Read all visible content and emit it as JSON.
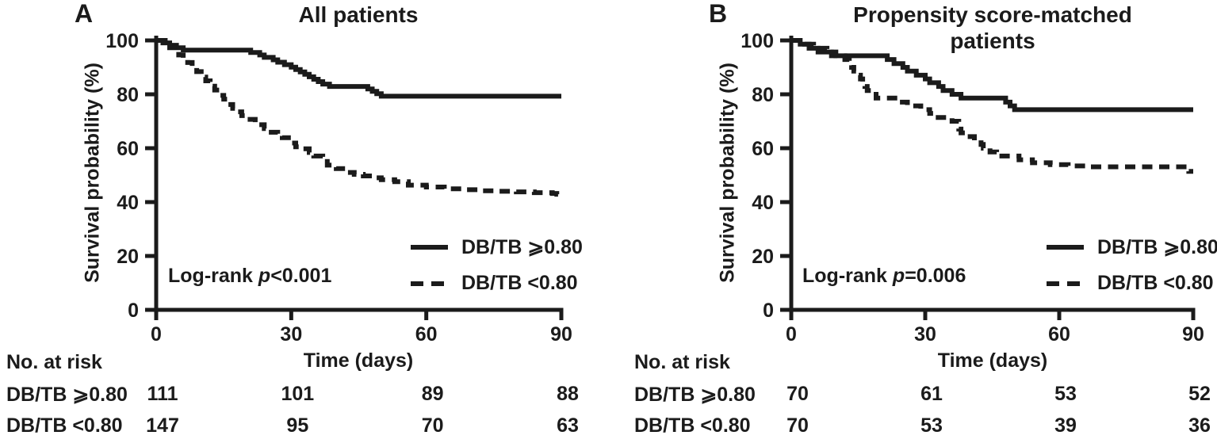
{
  "figure": {
    "panels": [
      {
        "letter": "A",
        "log_rank": {
          "prefix": "Log-rank ",
          "p": "p",
          "value": "<0.001"
        }
      },
      {
        "letter": "B",
        "log_rank": {
          "prefix": "Log-rank ",
          "p": "p",
          "value": "=0.006"
        }
      }
    ]
  },
  "chart_data": [
    {
      "type": "line",
      "subtype": "kaplan-meier-step",
      "title": "All patients",
      "xlabel": "Time (days)",
      "ylabel": "Survival probability (%)",
      "xlim": [
        0,
        90
      ],
      "ylim": [
        0,
        100
      ],
      "x_ticks": [
        0,
        30,
        60,
        90
      ],
      "y_ticks": [
        0,
        20,
        40,
        60,
        80,
        100
      ],
      "grid": false,
      "legend_position": "lower right",
      "annotation": "Log-rank p<0.001",
      "series": [
        {
          "name": "DB/TB ⩾0.80",
          "line_style": "solid",
          "points": [
            [
              0,
              100
            ],
            [
              1.5,
              99.1
            ],
            [
              3,
              98.2
            ],
            [
              4.5,
              97.3
            ],
            [
              6,
              96.4
            ],
            [
              19,
              96.4
            ],
            [
              21,
              95.5
            ],
            [
              23,
              94.6
            ],
            [
              24,
              93.7
            ],
            [
              26,
              92.8
            ],
            [
              27,
              91.9
            ],
            [
              28.5,
              91
            ],
            [
              30,
              90.1
            ],
            [
              31,
              89.2
            ],
            [
              32,
              88.3
            ],
            [
              33,
              87.4
            ],
            [
              34,
              86.5
            ],
            [
              35,
              85.6
            ],
            [
              36,
              84.7
            ],
            [
              37,
              83.8
            ],
            [
              38.5,
              82.9
            ],
            [
              46,
              82.9
            ],
            [
              47,
              82
            ],
            [
              48,
              81.1
            ],
            [
              49,
              80.2
            ],
            [
              50,
              79.3
            ],
            [
              90,
              79.3
            ]
          ]
        },
        {
          "name": "DB/TB <0.80",
          "line_style": "dashed",
          "points": [
            [
              0,
              100
            ],
            [
              2,
              98.6
            ],
            [
              3,
              97.3
            ],
            [
              4,
              95.9
            ],
            [
              5,
              94.6
            ],
            [
              6,
              93.2
            ],
            [
              7,
              91.8
            ],
            [
              8,
              89.8
            ],
            [
              9,
              88.4
            ],
            [
              10,
              86.4
            ],
            [
              11,
              85
            ],
            [
              12,
              83
            ],
            [
              13,
              81.6
            ],
            [
              14,
              79.6
            ],
            [
              15,
              78.2
            ],
            [
              16,
              76.2
            ],
            [
              17,
              74.8
            ],
            [
              18,
              73.5
            ],
            [
              19,
              72.1
            ],
            [
              20,
              70.7
            ],
            [
              22,
              68.7
            ],
            [
              24,
              67.3
            ],
            [
              25,
              65.9
            ],
            [
              27,
              65.2
            ],
            [
              28,
              63.9
            ],
            [
              30,
              61.9
            ],
            [
              31,
              60.5
            ],
            [
              32,
              59.8
            ],
            [
              34,
              58.4
            ],
            [
              35,
              57.1
            ],
            [
              37,
              55.1
            ],
            [
              38,
              53.7
            ],
            [
              40,
              52.4
            ],
            [
              42,
              51
            ],
            [
              44,
              50.3
            ],
            [
              46,
              49.7
            ],
            [
              48,
              49
            ],
            [
              50,
              48.3
            ],
            [
              53,
              47.6
            ],
            [
              56,
              46.3
            ],
            [
              60,
              45.6
            ],
            [
              64,
              44.9
            ],
            [
              68,
              44.6
            ],
            [
              72,
              44.2
            ],
            [
              76,
              44
            ],
            [
              80,
              43.8
            ],
            [
              84,
              43.5
            ],
            [
              88,
              43.2
            ],
            [
              89,
              42.9
            ],
            [
              90,
              42.9
            ]
          ]
        }
      ],
      "risk_table": {
        "header": "No. at risk",
        "time_points": [
          0,
          30,
          60,
          90
        ],
        "rows": [
          {
            "label": "DB/TB ⩾0.80",
            "values": [
              111,
              101,
              89,
              88
            ]
          },
          {
            "label": "DB/TB <0.80",
            "values": [
              147,
              95,
              70,
              63
            ]
          }
        ]
      }
    },
    {
      "type": "line",
      "subtype": "kaplan-meier-step",
      "title": "Propensity score-matched patients",
      "xlabel": "Time (days)",
      "ylabel": "Survival probability (%)",
      "xlim": [
        0,
        90
      ],
      "ylim": [
        0,
        100
      ],
      "x_ticks": [
        0,
        30,
        60,
        90
      ],
      "y_ticks": [
        0,
        20,
        40,
        60,
        80,
        100
      ],
      "grid": false,
      "legend_position": "lower right",
      "annotation": "Log-rank p=0.006",
      "series": [
        {
          "name": "DB/TB ⩾0.80",
          "line_style": "solid",
          "points": [
            [
              0,
              100
            ],
            [
              2,
              98.6
            ],
            [
              4,
              97.1
            ],
            [
              6,
              95.7
            ],
            [
              9,
              94.3
            ],
            [
              20,
              94.3
            ],
            [
              21.5,
              92.9
            ],
            [
              23,
              91.4
            ],
            [
              25,
              90
            ],
            [
              26,
              88.6
            ],
            [
              28,
              87.1
            ],
            [
              30,
              85.7
            ],
            [
              31,
              84.3
            ],
            [
              33,
              82.9
            ],
            [
              34,
              81.4
            ],
            [
              36,
              80
            ],
            [
              38,
              78.6
            ],
            [
              47,
              78.6
            ],
            [
              48,
              77.1
            ],
            [
              49,
              75.7
            ],
            [
              50,
              74.3
            ],
            [
              90,
              74.3
            ]
          ]
        },
        {
          "name": "DB/TB <0.80",
          "line_style": "dashed",
          "points": [
            [
              0,
              100
            ],
            [
              3,
              98.6
            ],
            [
              5,
              97.1
            ],
            [
              8,
              95.7
            ],
            [
              10,
              94.3
            ],
            [
              12,
              92.9
            ],
            [
              13,
              91.4
            ],
            [
              13.5,
              90
            ],
            [
              14,
              88.6
            ],
            [
              15,
              87.1
            ],
            [
              15.5,
              85.7
            ],
            [
              16,
              84.3
            ],
            [
              16.5,
              82.9
            ],
            [
              17,
              81.4
            ],
            [
              18,
              80
            ],
            [
              19,
              78.6
            ],
            [
              23,
              78.6
            ],
            [
              24,
              77.1
            ],
            [
              26,
              75.7
            ],
            [
              29,
              74.3
            ],
            [
              31,
              72.9
            ],
            [
              32,
              71.4
            ],
            [
              36,
              70
            ],
            [
              37.5,
              67.1
            ],
            [
              38,
              65.7
            ],
            [
              39,
              64.3
            ],
            [
              41,
              62.9
            ],
            [
              42.5,
              61.4
            ],
            [
              43,
              60
            ],
            [
              44.5,
              58.6
            ],
            [
              46,
              57.1
            ],
            [
              50,
              57.1
            ],
            [
              51,
              55.7
            ],
            [
              54,
              54.6
            ],
            [
              58,
              53.9
            ],
            [
              62,
              53.4
            ],
            [
              66,
              53.1
            ],
            [
              88,
              53.1
            ],
            [
              89,
              51.4
            ],
            [
              90,
              51.4
            ]
          ]
        }
      ],
      "risk_table": {
        "header": "No. at risk",
        "time_points": [
          0,
          30,
          60,
          90
        ],
        "rows": [
          {
            "label": "DB/TB ⩾0.80",
            "values": [
              70,
              61,
              53,
              52
            ]
          },
          {
            "label": "DB/TB <0.80",
            "values": [
              70,
              53,
              39,
              36
            ]
          }
        ]
      }
    }
  ],
  "style": {
    "curve_color": "#1b1b1b",
    "text_color": "#1b1b1b",
    "background": "#ffffff"
  }
}
